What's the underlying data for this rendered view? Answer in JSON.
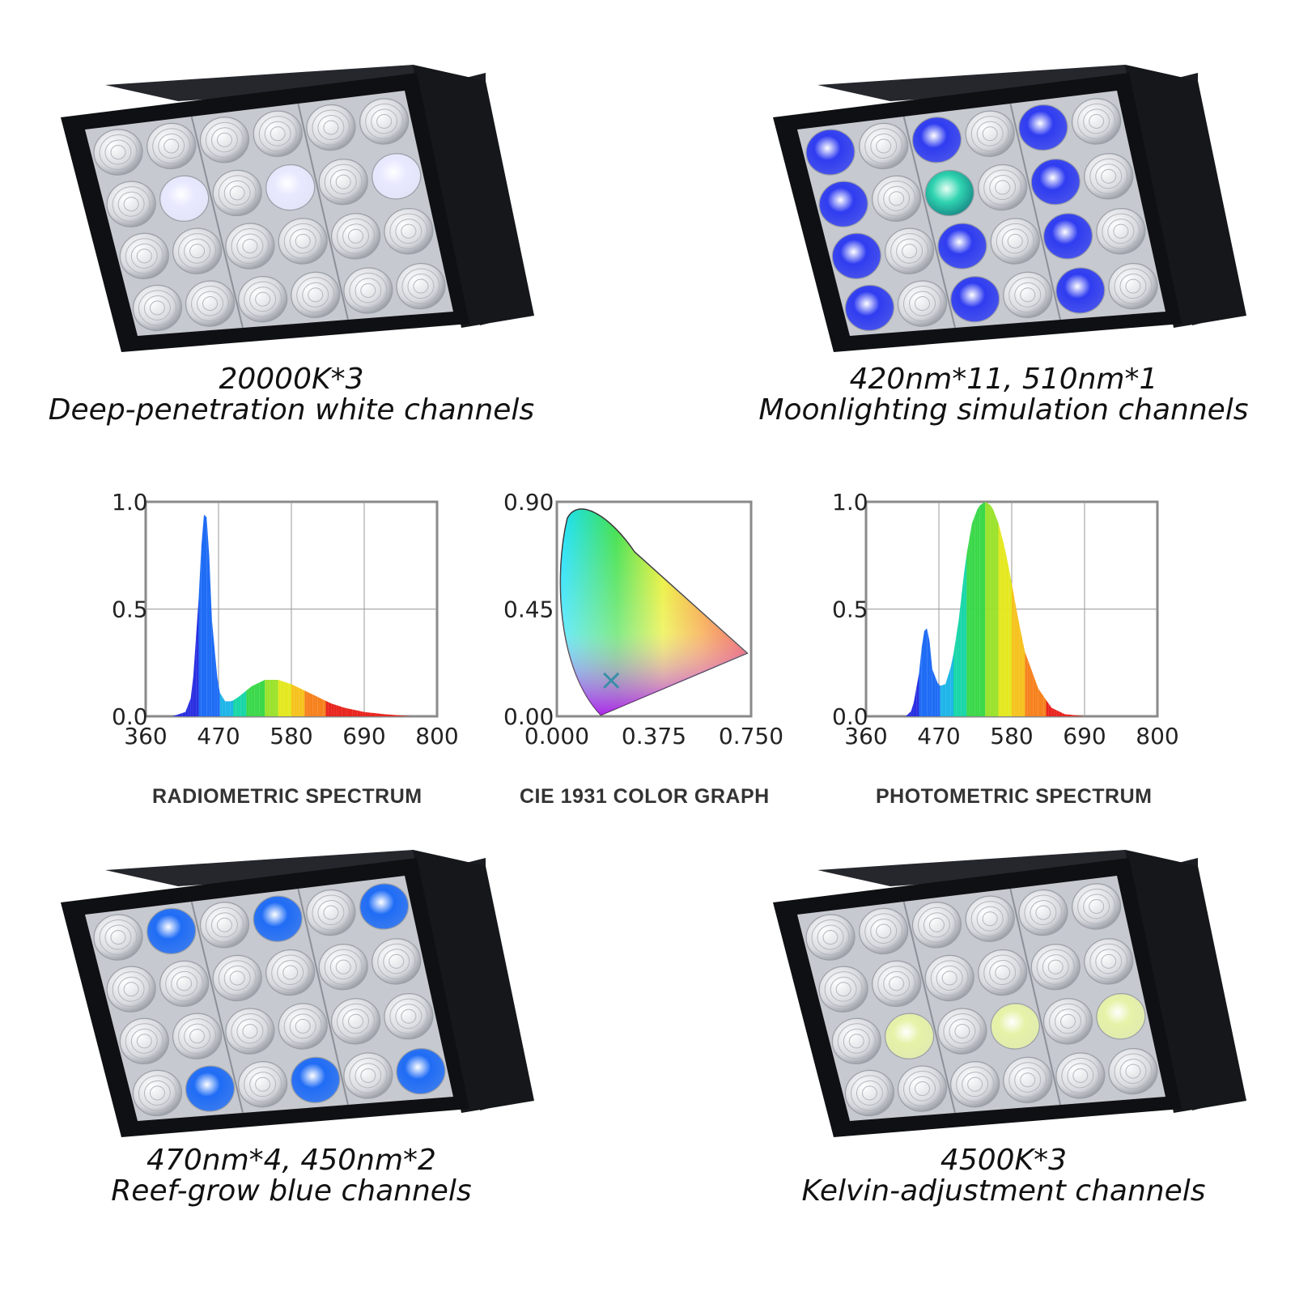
{
  "fixtures": [
    {
      "id": "white",
      "line1": "20000K*3",
      "line2": "Deep-penetration white channels",
      "accent": "#c9ccff",
      "lit": [
        [
          1,
          1
        ],
        [
          1,
          3
        ],
        [
          1,
          5
        ]
      ],
      "litColor": "#e8e9ff"
    },
    {
      "id": "moon",
      "line1": "420nm*11, 510nm*1",
      "line2": "Moonlighting simulation channels",
      "accent": "#2f3cf0",
      "lit": [
        [
          0,
          0
        ],
        [
          1,
          0
        ],
        [
          2,
          0
        ],
        [
          3,
          0
        ],
        [
          0,
          2
        ],
        [
          2,
          2
        ],
        [
          3,
          2
        ],
        [
          0,
          4
        ],
        [
          1,
          4
        ],
        [
          2,
          4
        ],
        [
          3,
          4
        ]
      ],
      "litColor": "#2f3cf0",
      "extraLit": [
        [
          1,
          2
        ]
      ],
      "extraColor": "#2fd3b0"
    },
    {
      "id": "reef",
      "line1": "470nm*4, 450nm*2",
      "line2": "Reef-grow blue channels",
      "accent": "#1f6cf5",
      "lit": [
        [
          0,
          1
        ],
        [
          0,
          3
        ],
        [
          0,
          5
        ],
        [
          3,
          1
        ],
        [
          3,
          3
        ],
        [
          3,
          5
        ]
      ],
      "litColor": "#1f6cf5"
    },
    {
      "id": "kelvin",
      "line1": "4500K*3",
      "line2": "Kelvin-adjustment channels",
      "accent": "#e6f2a8",
      "lit": [
        [
          2,
          1
        ],
        [
          2,
          3
        ],
        [
          2,
          5
        ]
      ],
      "litColor": "#e6f2a8"
    }
  ],
  "chart_data": [
    {
      "type": "area",
      "title": "RADIOMETRIC SPECTRUM",
      "x": [
        360,
        400,
        420,
        430,
        440,
        445,
        450,
        455,
        460,
        470,
        480,
        490,
        500,
        520,
        540,
        560,
        580,
        600,
        620,
        640,
        660,
        690,
        720,
        760,
        800
      ],
      "y": [
        0.0,
        0.0,
        0.02,
        0.1,
        0.55,
        0.85,
        1.0,
        0.82,
        0.45,
        0.12,
        0.07,
        0.07,
        0.09,
        0.14,
        0.17,
        0.17,
        0.15,
        0.12,
        0.09,
        0.06,
        0.04,
        0.02,
        0.01,
        0.0,
        0.0
      ],
      "xticks": [
        "360",
        "470",
        "580",
        "690",
        "800"
      ],
      "yticks": [
        "0.0",
        "0.5",
        "1.0"
      ],
      "xlim": [
        360,
        800
      ],
      "ylim": [
        0,
        1.0
      ],
      "grid": true
    },
    {
      "type": "scatter",
      "title": "CIE 1931 COLOR GRAPH",
      "xticks": [
        "0.000",
        "0.375",
        "0.750"
      ],
      "yticks": [
        "0.00",
        "0.45",
        "0.90"
      ],
      "xlim": [
        0,
        0.75
      ],
      "ylim": [
        0,
        0.9
      ],
      "point": {
        "x": 0.21,
        "y": 0.15
      },
      "grid": false
    },
    {
      "type": "area",
      "title": "PHOTOMETRIC SPECTRUM",
      "x": [
        360,
        420,
        430,
        440,
        445,
        450,
        455,
        460,
        470,
        480,
        490,
        500,
        510,
        520,
        530,
        540,
        550,
        560,
        570,
        580,
        590,
        600,
        620,
        640,
        660,
        690,
        720,
        800
      ],
      "y": [
        0.0,
        0.0,
        0.03,
        0.2,
        0.35,
        0.43,
        0.38,
        0.22,
        0.14,
        0.15,
        0.25,
        0.45,
        0.72,
        0.9,
        0.98,
        1.0,
        0.98,
        0.9,
        0.78,
        0.62,
        0.45,
        0.3,
        0.13,
        0.04,
        0.01,
        0.0,
        0.0,
        0.0
      ],
      "xticks": [
        "360",
        "470",
        "580",
        "690",
        "800"
      ],
      "yticks": [
        "0.0",
        "0.5",
        "1.0"
      ],
      "xlim": [
        360,
        800
      ],
      "ylim": [
        0,
        1.0
      ],
      "grid": true
    }
  ]
}
